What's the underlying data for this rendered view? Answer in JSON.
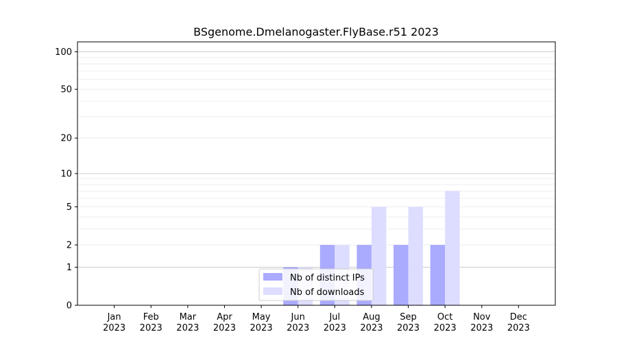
{
  "chart_data": {
    "type": "bar",
    "title": "BSgenome.Dmelanogaster.FlyBase.r51 2023",
    "xlabel": "",
    "ylabel": "",
    "yscale": "log1p",
    "ylim": [
      0,
      120
    ],
    "yticks": [
      0,
      1,
      2,
      5,
      10,
      20,
      50,
      100
    ],
    "categories": [
      {
        "month": "Jan",
        "year": "2023"
      },
      {
        "month": "Feb",
        "year": "2023"
      },
      {
        "month": "Mar",
        "year": "2023"
      },
      {
        "month": "Apr",
        "year": "2023"
      },
      {
        "month": "May",
        "year": "2023"
      },
      {
        "month": "Jun",
        "year": "2023"
      },
      {
        "month": "Jul",
        "year": "2023"
      },
      {
        "month": "Aug",
        "year": "2023"
      },
      {
        "month": "Sep",
        "year": "2023"
      },
      {
        "month": "Oct",
        "year": "2023"
      },
      {
        "month": "Nov",
        "year": "2023"
      },
      {
        "month": "Dec",
        "year": "2023"
      }
    ],
    "series": [
      {
        "name": "Nb of distinct IPs",
        "color": "#aaaaff",
        "values": [
          0,
          0,
          0,
          0,
          0,
          1,
          2,
          2,
          2,
          2,
          0,
          0
        ]
      },
      {
        "name": "Nb of downloads",
        "color": "#ddddff",
        "values": [
          0,
          0,
          0,
          0,
          0,
          1,
          2,
          5,
          5,
          7,
          0,
          0
        ]
      }
    ],
    "grid": true,
    "legend": "bottom-center"
  }
}
